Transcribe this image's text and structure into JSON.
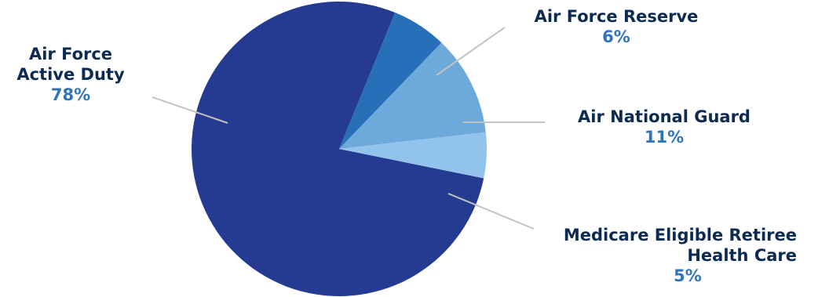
{
  "chart_data": {
    "type": "pie",
    "title": "",
    "slices": [
      {
        "label": [
          "Air Force",
          "Active Duty"
        ],
        "pct_label": "78%",
        "value": 78,
        "color": "#253b91"
      },
      {
        "label": [
          "Air Force Reserve"
        ],
        "pct_label": "6%",
        "value": 6,
        "color": "#2770b9"
      },
      {
        "label": [
          "Air National Guard"
        ],
        "pct_label": "11%",
        "value": 11,
        "color": "#6ea9dc"
      },
      {
        "label": [
          "Medicare Eligible Retiree",
          "Health Care"
        ],
        "pct_label": "5%",
        "value": 5,
        "color": "#92c3ec"
      }
    ],
    "percent_color": "#2f73ba",
    "label_color": "#0c2a52",
    "legend": "none",
    "grid": false
  }
}
